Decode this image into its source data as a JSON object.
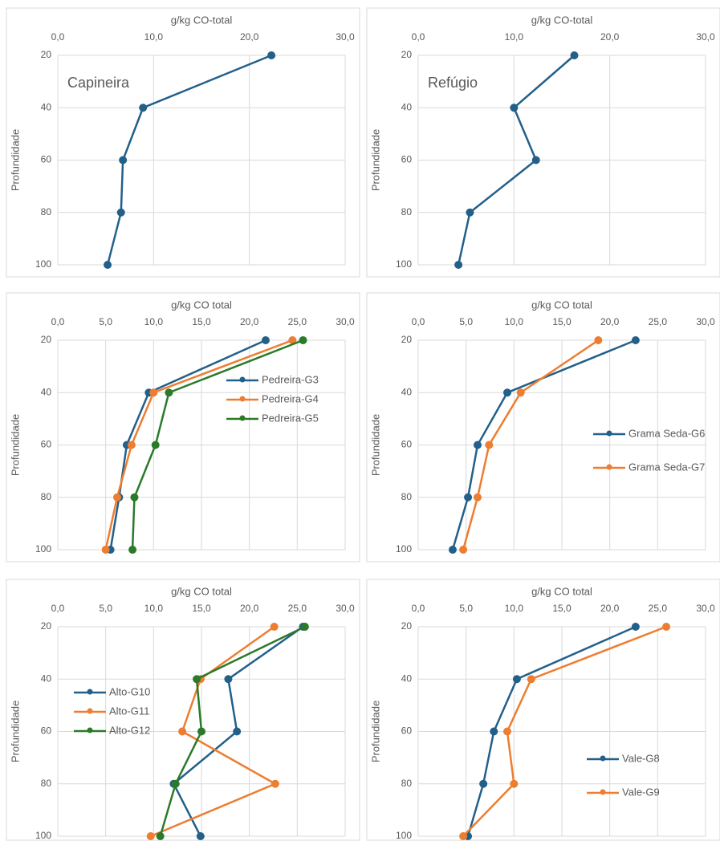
{
  "chart_data": [
    {
      "type": "line",
      "annotation": "Capineira",
      "x_label": "g/kg CO-total",
      "y_label": "Profundidade",
      "categories": [
        20,
        40,
        60,
        80,
        100
      ],
      "xlim": [
        0,
        30
      ],
      "xticks": [
        {
          "value": 0,
          "label": "0,0"
        },
        {
          "value": 10,
          "label": "10,0"
        },
        {
          "value": 20,
          "label": "20,0"
        },
        {
          "value": 30,
          "label": "30,0"
        }
      ],
      "grid": true,
      "series": [
        {
          "color": "#22608a",
          "values": [
            22.3,
            8.9,
            6.8,
            6.6,
            5.2
          ]
        }
      ]
    },
    {
      "type": "line",
      "annotation": "Refúgio",
      "x_label": "g/kg CO-total",
      "y_label": "Profundidade",
      "categories": [
        20,
        40,
        60,
        80,
        100
      ],
      "xlim": [
        0,
        30
      ],
      "xticks": [
        {
          "value": 0,
          "label": "0,0"
        },
        {
          "value": 10,
          "label": "10,0"
        },
        {
          "value": 20,
          "label": "20,0"
        },
        {
          "value": 30,
          "label": "30,0"
        }
      ],
      "grid": true,
      "series": [
        {
          "color": "#22608a",
          "values": [
            16.3,
            10.0,
            12.3,
            5.4,
            4.2
          ]
        }
      ]
    },
    {
      "type": "line",
      "x_label": "g/kg CO total",
      "y_label": "Profundidade",
      "categories": [
        20,
        40,
        60,
        80,
        100
      ],
      "xlim": [
        0,
        30
      ],
      "xticks": [
        {
          "value": 0,
          "label": "0,0"
        },
        {
          "value": 5,
          "label": "5,0"
        },
        {
          "value": 10,
          "label": "10,0"
        },
        {
          "value": 15,
          "label": "15,0"
        },
        {
          "value": 20,
          "label": "20,0"
        },
        {
          "value": 25,
          "label": "25,0"
        },
        {
          "value": 30,
          "label": "30,0"
        }
      ],
      "grid": true,
      "legend": "upper right",
      "series": [
        {
          "name": "Pedreira-G3",
          "color": "#22608a",
          "values": [
            21.7,
            9.5,
            7.2,
            6.4,
            5.5
          ]
        },
        {
          "name": "Pedreira-G4",
          "color": "#ed7d31",
          "values": [
            24.5,
            10.0,
            7.7,
            6.2,
            5.0
          ]
        },
        {
          "name": "Pedreira-G5",
          "color": "#2a7a2a",
          "values": [
            25.6,
            11.6,
            10.2,
            8.0,
            7.8
          ]
        }
      ]
    },
    {
      "type": "line",
      "x_label": "g/kg CO total",
      "y_label": "Profundidade",
      "categories": [
        20,
        40,
        60,
        80,
        100
      ],
      "xlim": [
        0,
        30
      ],
      "xticks": [
        {
          "value": 0,
          "label": "0,0"
        },
        {
          "value": 5,
          "label": "5,0"
        },
        {
          "value": 10,
          "label": "10,0"
        },
        {
          "value": 15,
          "label": "15,0"
        },
        {
          "value": 20,
          "label": "20,0"
        },
        {
          "value": 25,
          "label": "25,0"
        },
        {
          "value": 30,
          "label": "30,0"
        }
      ],
      "grid": true,
      "legend": "center right",
      "series": [
        {
          "name": "Grama Seda-G6",
          "color": "#22608a",
          "values": [
            22.7,
            9.3,
            6.2,
            5.2,
            3.6
          ]
        },
        {
          "name": "Grama Seda-G7",
          "color": "#ed7d31",
          "values": [
            18.8,
            10.7,
            7.4,
            6.2,
            4.7
          ]
        }
      ]
    },
    {
      "type": "line",
      "x_label": "g/kg CO total",
      "y_label": "Profundidade",
      "categories": [
        20,
        40,
        60,
        80,
        100
      ],
      "xlim": [
        0,
        30
      ],
      "xticks": [
        {
          "value": 0,
          "label": "0,0"
        },
        {
          "value": 5,
          "label": "5,0"
        },
        {
          "value": 10,
          "label": "10,0"
        },
        {
          "value": 15,
          "label": "15,0"
        },
        {
          "value": 20,
          "label": "20,0"
        },
        {
          "value": 25,
          "label": "25,0"
        },
        {
          "value": 30,
          "label": "30,0"
        }
      ],
      "grid": true,
      "legend": "center left",
      "series": [
        {
          "name": "Alto-G10",
          "color": "#22608a",
          "values": [
            25.6,
            17.8,
            18.7,
            12.1,
            14.9
          ]
        },
        {
          "name": "Alto-G11",
          "color": "#ed7d31",
          "values": [
            22.6,
            14.9,
            13.0,
            22.7,
            9.7
          ]
        },
        {
          "name": "Alto-G12",
          "color": "#2a7a2a",
          "values": [
            25.8,
            14.5,
            15.0,
            12.3,
            10.7
          ]
        }
      ]
    },
    {
      "type": "line",
      "x_label": "g/kg CO total",
      "y_label": "Profundidade",
      "categories": [
        20,
        40,
        60,
        80,
        100
      ],
      "xlim": [
        0,
        30
      ],
      "xticks": [
        {
          "value": 0,
          "label": "0,0"
        },
        {
          "value": 5,
          "label": "5,0"
        },
        {
          "value": 10,
          "label": "10,0"
        },
        {
          "value": 15,
          "label": "15,0"
        },
        {
          "value": 20,
          "label": "20,0"
        },
        {
          "value": 25,
          "label": "25,0"
        },
        {
          "value": 30,
          "label": "30,0"
        }
      ],
      "grid": true,
      "legend": "lower right",
      "series": [
        {
          "name": "Vale-G8",
          "color": "#22608a",
          "values": [
            22.7,
            10.3,
            7.9,
            6.8,
            5.2
          ]
        },
        {
          "name": "Vale-G9",
          "color": "#ed7d31",
          "values": [
            25.9,
            11.8,
            9.3,
            10.0,
            4.7
          ]
        }
      ]
    }
  ]
}
